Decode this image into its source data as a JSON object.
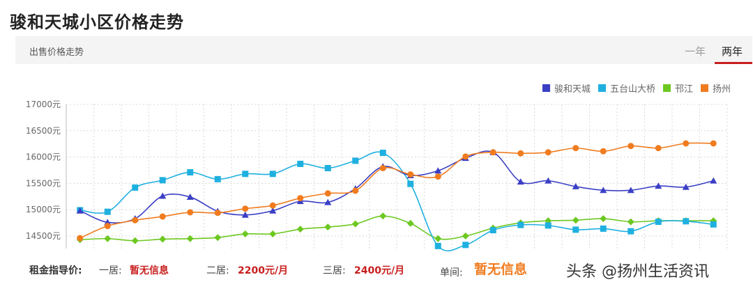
{
  "page": {
    "title": "骏和天城小区价格走势"
  },
  "tabbar": {
    "label": "出售价格走势",
    "tabs": [
      "一年",
      "两年"
    ],
    "active": "两年",
    "accent": "#c81e1e"
  },
  "chart_data": {
    "type": "line",
    "ylim": [
      14500,
      17000
    ],
    "y_ticks": [
      14500,
      15000,
      15500,
      16000,
      16500,
      17000
    ],
    "y_tick_labels": [
      "14500元",
      "15000元",
      "15500元",
      "16000元",
      "16500元",
      "17000元"
    ],
    "grid": "dotted",
    "legend_position": "top-right",
    "series": [
      {
        "name": "骏和天城",
        "color": "#3a3fc5",
        "marker": "triangle",
        "values": [
          14980,
          14760,
          14830,
          15260,
          15240,
          14970,
          14900,
          14980,
          15160,
          15140,
          15400,
          15820,
          15650,
          15740,
          15980,
          16090,
          15530,
          15550,
          15440,
          15370,
          15370,
          15450,
          15430,
          15550
        ]
      },
      {
        "name": "五台山大桥",
        "color": "#1fb0e0",
        "marker": "square",
        "values": [
          14990,
          14960,
          15420,
          15560,
          15710,
          15580,
          15680,
          15680,
          15870,
          15790,
          15930,
          16080,
          15490,
          14310,
          14330,
          14610,
          14710,
          14700,
          14620,
          14640,
          14590,
          14770,
          14780,
          14720
        ]
      },
      {
        "name": "邗江",
        "color": "#6cc820",
        "marker": "diamond",
        "values": [
          14430,
          14450,
          14410,
          14440,
          14450,
          14470,
          14540,
          14540,
          14630,
          14670,
          14730,
          14880,
          14740,
          14450,
          14500,
          14650,
          14750,
          14790,
          14800,
          14830,
          14770,
          14790,
          14790,
          14790
        ]
      },
      {
        "name": "扬州",
        "color": "#f07c1f",
        "marker": "circle",
        "values": [
          14460,
          14690,
          14800,
          14870,
          14950,
          14940,
          15020,
          15080,
          15220,
          15310,
          15360,
          15790,
          15670,
          15630,
          16010,
          16090,
          16070,
          16090,
          16170,
          16110,
          16210,
          16170,
          16260,
          16260
        ]
      }
    ]
  },
  "footer": {
    "rent_title": "租金指导价:",
    "one_room_label": "一居:",
    "one_room_value": "暂无信息",
    "two_room_label": "二居:",
    "two_room_value": "2200元/月",
    "three_room_label": "三居:",
    "three_room_value": "2400元/月",
    "unit_label": "单间:",
    "unit_value": "暂无信息"
  },
  "watermark": "头条 @扬州生活资讯"
}
